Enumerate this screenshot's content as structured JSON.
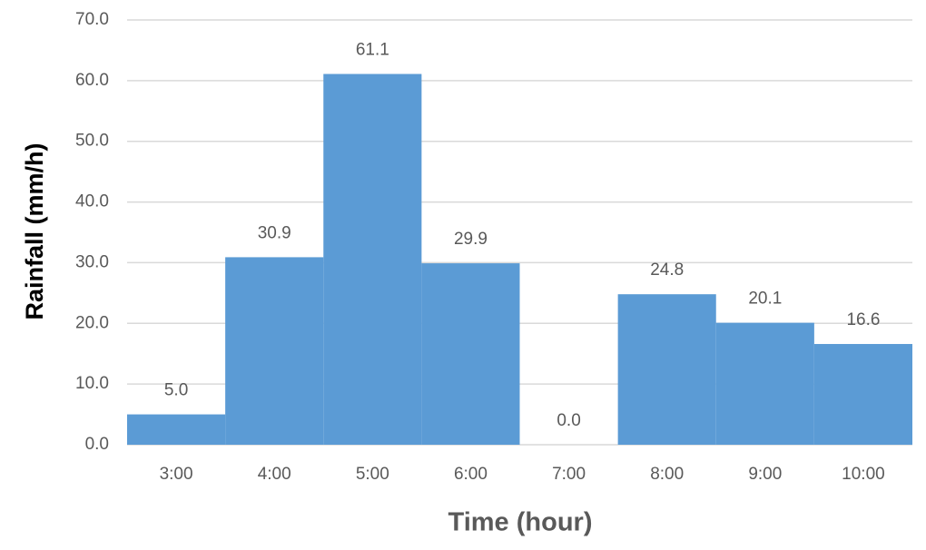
{
  "chart_data": {
    "type": "bar",
    "x_label": "Time (hour)",
    "y_label": "Rainfall (mm/h)",
    "categories": [
      "3:00",
      "4:00",
      "5:00",
      "6:00",
      "7:00",
      "8:00",
      "9:00",
      "10:00"
    ],
    "values": [
      5.0,
      30.9,
      61.1,
      29.9,
      0.0,
      24.8,
      20.1,
      16.6
    ],
    "value_labels": [
      "5.0",
      "30.9",
      "61.1",
      "29.9",
      "0.0",
      "24.8",
      "20.1",
      "16.6"
    ],
    "color": "#5b9bd5",
    "ylim": [
      0,
      70
    ],
    "yticks": [
      {
        "value": 0,
        "label": "0.0"
      },
      {
        "value": 10,
        "label": "10.0"
      },
      {
        "value": 20,
        "label": "20.0"
      },
      {
        "value": 30,
        "label": "30.0"
      },
      {
        "value": 40,
        "label": "40.0"
      },
      {
        "value": 50,
        "label": "50.0"
      },
      {
        "value": 60,
        "label": "60.0"
      },
      {
        "value": 70,
        "label": "70.0"
      }
    ],
    "grid": true
  }
}
